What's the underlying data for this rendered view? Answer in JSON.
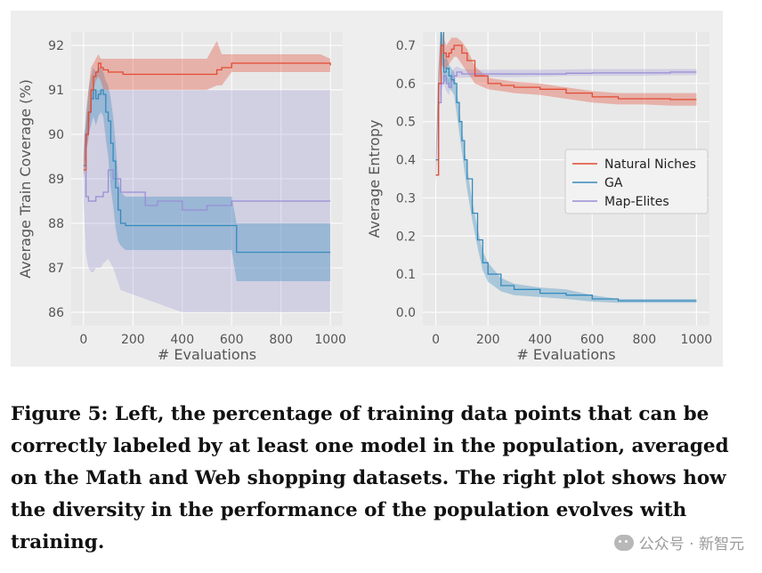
{
  "chart_data": [
    {
      "type": "line",
      "xlabel": "# Evaluations",
      "ylabel": "Average Train Coverage (%)",
      "xlim": [
        0,
        1000
      ],
      "ylim": [
        86,
        92
      ],
      "xticks": [
        0,
        200,
        400,
        600,
        800,
        1000
      ],
      "yticks": [
        86,
        87,
        88,
        89,
        90,
        91,
        92
      ],
      "grid": true,
      "series": [
        {
          "name": "Natural Niches",
          "color": "#e24a33",
          "x": [
            0,
            10,
            20,
            30,
            40,
            50,
            60,
            70,
            80,
            100,
            130,
            160,
            200,
            250,
            300,
            400,
            500,
            540,
            560,
            600,
            620,
            700,
            800,
            900,
            960,
            1000
          ],
          "y": [
            89.2,
            90.0,
            90.5,
            91.0,
            91.3,
            91.4,
            91.6,
            91.5,
            91.45,
            91.4,
            91.4,
            91.35,
            91.35,
            91.35,
            91.35,
            91.35,
            91.35,
            91.45,
            91.5,
            91.6,
            91.6,
            91.6,
            91.6,
            91.6,
            91.6,
            91.55
          ],
          "lower": [
            89.0,
            89.6,
            89.9,
            90.6,
            91.0,
            91.2,
            91.3,
            91.2,
            91.0,
            91.0,
            91.0,
            91.0,
            91.0,
            91.0,
            91.0,
            91.0,
            91.0,
            91.1,
            91.1,
            91.4,
            91.4,
            91.4,
            91.4,
            91.4,
            91.4,
            91.4
          ],
          "upper": [
            89.4,
            90.3,
            91.0,
            91.5,
            91.6,
            91.7,
            91.8,
            91.7,
            91.7,
            91.7,
            91.7,
            91.7,
            91.7,
            91.7,
            91.7,
            91.7,
            91.7,
            92.1,
            91.8,
            91.8,
            91.8,
            91.8,
            91.8,
            91.8,
            91.8,
            91.7
          ]
        },
        {
          "name": "GA",
          "color": "#348abd",
          "x": [
            0,
            10,
            20,
            30,
            40,
            50,
            60,
            70,
            80,
            90,
            100,
            110,
            120,
            130,
            140,
            150,
            170,
            200,
            300,
            400,
            500,
            600,
            620,
            700,
            800,
            900,
            1000
          ],
          "y": [
            89.3,
            90.0,
            90.5,
            90.8,
            91.0,
            90.8,
            90.9,
            91.0,
            90.9,
            90.5,
            90.3,
            89.8,
            89.4,
            88.8,
            88.3,
            88.0,
            87.95,
            87.95,
            87.95,
            87.95,
            87.95,
            87.95,
            87.35,
            87.35,
            87.35,
            87.35,
            87.35
          ],
          "lower": [
            89.0,
            89.6,
            90.0,
            90.2,
            90.4,
            90.2,
            90.4,
            90.5,
            90.4,
            89.9,
            89.5,
            88.8,
            88.4,
            87.9,
            87.6,
            87.5,
            87.4,
            87.4,
            87.4,
            87.4,
            87.4,
            87.4,
            86.7,
            86.7,
            86.7,
            86.7,
            86.7
          ],
          "upper": [
            89.6,
            90.5,
            91.0,
            91.3,
            91.5,
            91.4,
            91.5,
            91.5,
            91.4,
            91.2,
            91.1,
            90.8,
            90.4,
            89.8,
            89.0,
            88.7,
            88.6,
            88.6,
            88.6,
            88.6,
            88.6,
            88.6,
            88.0,
            88.0,
            88.0,
            88.0,
            88.0
          ]
        },
        {
          "name": "Map-Elites",
          "color": "#988ed5",
          "x": [
            0,
            10,
            20,
            30,
            40,
            50,
            60,
            70,
            80,
            100,
            120,
            150,
            200,
            250,
            300,
            350,
            400,
            450,
            500,
            600,
            700,
            800,
            900,
            1000
          ],
          "y": [
            89.3,
            88.6,
            88.5,
            88.5,
            88.5,
            88.6,
            88.6,
            88.6,
            88.7,
            89.2,
            89.0,
            88.7,
            88.7,
            88.4,
            88.5,
            88.5,
            88.3,
            88.3,
            88.4,
            88.5,
            88.5,
            88.5,
            88.5,
            88.5
          ],
          "lower": [
            88.5,
            87.3,
            87.0,
            86.9,
            86.9,
            87.0,
            87.0,
            87.0,
            87.1,
            87.2,
            87.0,
            86.5,
            86.4,
            86.3,
            86.2,
            86.1,
            86.0,
            86.0,
            86.0,
            86.0,
            86.0,
            86.0,
            86.0,
            86.0
          ],
          "upper": [
            90.0,
            90.2,
            90.5,
            90.8,
            91.0,
            91.0,
            91.0,
            91.0,
            91.0,
            91.0,
            91.0,
            91.0,
            91.0,
            91.0,
            91.0,
            91.0,
            91.0,
            91.0,
            91.0,
            91.0,
            91.0,
            91.0,
            91.0,
            91.0
          ]
        }
      ]
    },
    {
      "type": "line",
      "xlabel": "# Evaluations",
      "ylabel": "Average Entropy",
      "xlim": [
        0,
        1000
      ],
      "ylim": [
        0.0,
        0.7
      ],
      "xticks": [
        0,
        200,
        400,
        600,
        800,
        1000
      ],
      "yticks": [
        0.0,
        0.1,
        0.2,
        0.3,
        0.4,
        0.5,
        0.6,
        0.7
      ],
      "grid": true,
      "legend_position": "center-right",
      "legend": [
        "Natural Niches",
        "GA",
        "Map-Elites"
      ],
      "series": [
        {
          "name": "Natural Niches",
          "color": "#e24a33",
          "x": [
            0,
            10,
            20,
            30,
            40,
            50,
            60,
            70,
            80,
            100,
            120,
            150,
            200,
            250,
            300,
            400,
            500,
            600,
            700,
            800,
            900,
            1000
          ],
          "y": [
            0.36,
            0.6,
            0.7,
            0.68,
            0.67,
            0.68,
            0.69,
            0.7,
            0.7,
            0.68,
            0.66,
            0.62,
            0.6,
            0.595,
            0.59,
            0.585,
            0.575,
            0.565,
            0.56,
            0.56,
            0.558,
            0.558
          ],
          "lower": [
            0.34,
            0.56,
            0.65,
            0.64,
            0.64,
            0.65,
            0.66,
            0.67,
            0.67,
            0.65,
            0.63,
            0.6,
            0.585,
            0.58,
            0.575,
            0.57,
            0.56,
            0.55,
            0.545,
            0.545,
            0.542,
            0.542
          ],
          "upper": [
            0.38,
            0.64,
            0.74,
            0.72,
            0.7,
            0.71,
            0.72,
            0.72,
            0.72,
            0.71,
            0.69,
            0.645,
            0.615,
            0.61,
            0.605,
            0.6,
            0.59,
            0.58,
            0.575,
            0.575,
            0.575,
            0.575
          ]
        },
        {
          "name": "GA",
          "color": "#348abd",
          "x": [
            0,
            10,
            20,
            30,
            40,
            50,
            60,
            70,
            80,
            90,
            100,
            110,
            120,
            140,
            160,
            180,
            200,
            250,
            300,
            400,
            500,
            600,
            700,
            800,
            900,
            1000
          ],
          "y": [
            0.4,
            0.6,
            0.75,
            0.63,
            0.64,
            0.62,
            0.61,
            0.6,
            0.55,
            0.5,
            0.45,
            0.4,
            0.35,
            0.26,
            0.19,
            0.13,
            0.1,
            0.07,
            0.06,
            0.05,
            0.045,
            0.035,
            0.03,
            0.03,
            0.03,
            0.03
          ],
          "lower": [
            0.38,
            0.56,
            0.7,
            0.6,
            0.61,
            0.59,
            0.58,
            0.57,
            0.52,
            0.47,
            0.42,
            0.37,
            0.32,
            0.24,
            0.17,
            0.11,
            0.08,
            0.055,
            0.045,
            0.04,
            0.035,
            0.028,
            0.025,
            0.025,
            0.025,
            0.025
          ],
          "upper": [
            0.42,
            0.64,
            0.78,
            0.66,
            0.67,
            0.65,
            0.64,
            0.63,
            0.58,
            0.53,
            0.48,
            0.43,
            0.38,
            0.29,
            0.22,
            0.16,
            0.13,
            0.09,
            0.075,
            0.065,
            0.06,
            0.045,
            0.035,
            0.035,
            0.035,
            0.035
          ]
        },
        {
          "name": "Map-Elites",
          "color": "#988ed5",
          "x": [
            0,
            10,
            20,
            30,
            40,
            50,
            60,
            70,
            80,
            100,
            150,
            200,
            300,
            400,
            500,
            600,
            700,
            800,
            900,
            1000
          ],
          "y": [
            0.36,
            0.55,
            0.6,
            0.62,
            0.6,
            0.59,
            0.61,
            0.62,
            0.63,
            0.625,
            0.625,
            0.625,
            0.625,
            0.625,
            0.627,
            0.628,
            0.628,
            0.628,
            0.63,
            0.63
          ],
          "lower": [
            0.34,
            0.52,
            0.58,
            0.6,
            0.58,
            0.57,
            0.6,
            0.61,
            0.615,
            0.615,
            0.617,
            0.617,
            0.617,
            0.618,
            0.62,
            0.62,
            0.62,
            0.62,
            0.622,
            0.622
          ],
          "upper": [
            0.38,
            0.58,
            0.62,
            0.64,
            0.62,
            0.61,
            0.63,
            0.64,
            0.645,
            0.638,
            0.636,
            0.636,
            0.636,
            0.636,
            0.637,
            0.638,
            0.638,
            0.638,
            0.638,
            0.638
          ]
        }
      ]
    }
  ],
  "caption": "Figure 5: Left, the percentage of training data points that can be correctly labeled by at least one model in the population, averaged on the Math and Web shopping datasets. The right plot shows how the diversity in the performance of the population evolves with training.",
  "watermark": "公众号 · 新智元"
}
